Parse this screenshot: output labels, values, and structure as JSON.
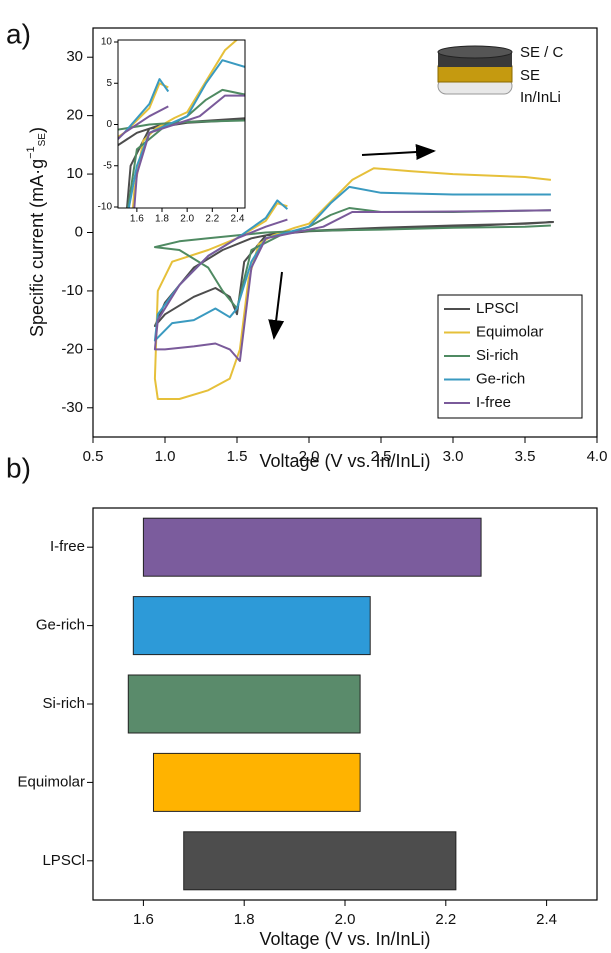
{
  "chart_data": [
    {
      "type": "line",
      "panel_label": "a)",
      "x_label": "Voltage (V vs. In/InLi)",
      "y_label": [
        "Specific current (mA·g",
        "−1",
        "SE",
        ")"
      ],
      "annotations": [
        "SE / C",
        "SE",
        "In/InLi"
      ],
      "xlim": [
        0.5,
        4.0
      ],
      "ylim": [
        -35,
        35
      ],
      "xticks": [
        0.5,
        {
          "value": 1,
          "label": "1.0"
        },
        1.5,
        {
          "value": 2,
          "label": "2.0"
        },
        2.5,
        {
          "value": 3,
          "label": "3.0"
        },
        3.5,
        {
          "value": 4,
          "label": "4.0"
        }
      ],
      "yticks": [
        -30,
        -20,
        -10,
        0,
        10,
        20,
        30
      ],
      "legend": "lower right",
      "series": [
        {
          "name": "LPSCl",
          "color": "#4d4d4d",
          "x": [
            3.7,
            3.0,
            2.5,
            2.0,
            1.7,
            1.55,
            1.5,
            1.45,
            1.35,
            1.2,
            1.0,
            0.93,
            1.0,
            1.2,
            1.4,
            1.6,
            1.8,
            2.0,
            2.5,
            3.0,
            3.5,
            3.7
          ],
          "values": [
            1.8,
            1.0,
            0.6,
            0.2,
            -0.5,
            -5,
            -14,
            -11,
            -9.5,
            -11,
            -14,
            -16,
            -12,
            -6,
            -3,
            -1,
            0,
            0.3,
            0.8,
            1.2,
            1.5,
            1.8
          ]
        },
        {
          "name": "Equimolar",
          "color": "#e6c03a",
          "x": [
            3.68,
            3.5,
            3.0,
            2.7,
            2.45,
            2.3,
            2.1,
            2.0,
            1.9,
            1.75,
            1.65,
            1.58,
            1.52,
            1.45,
            1.3,
            1.1,
            0.95,
            0.93,
            0.95,
            1.05,
            1.3,
            1.5,
            1.7,
            1.78,
            1.85
          ],
          "values": [
            9,
            9.5,
            10,
            10.5,
            11,
            9,
            4,
            1.5,
            0.8,
            -0.5,
            -2,
            -8,
            -20,
            -25,
            -27,
            -28.5,
            -28.5,
            -25,
            -10,
            -5,
            -3,
            -1,
            2,
            5,
            4.5
          ]
        },
        {
          "name": "Si-rich",
          "color": "#4f8a62",
          "x": [
            3.68,
            3.0,
            2.5,
            2.28,
            2.15,
            2.0,
            1.8,
            1.6,
            1.5,
            1.4,
            1.3,
            1.1,
            0.93,
            1.1,
            1.3,
            1.5,
            1.7,
            2.0,
            2.5,
            3.0,
            3.5,
            3.68
          ],
          "values": [
            3.8,
            3.5,
            3.5,
            4.2,
            3,
            1,
            -0.5,
            -3,
            -13,
            -10,
            -6,
            -3,
            -2.5,
            -1.5,
            -1,
            -0.5,
            0,
            0.3,
            0.5,
            0.8,
            1,
            1.2
          ]
        },
        {
          "name": "Ge-rich",
          "color": "#3a9ac0",
          "x": [
            3.68,
            3.0,
            2.5,
            2.28,
            2.15,
            2.0,
            1.85,
            1.7,
            1.6,
            1.5,
            1.45,
            1.35,
            1.2,
            1.05,
            0.93,
            0.95,
            1.1,
            1.3,
            1.5,
            1.7,
            1.78,
            1.85
          ],
          "values": [
            6.5,
            6.5,
            6.8,
            7.8,
            5,
            1,
            0,
            -1,
            -5,
            -13,
            -14.5,
            -13,
            -15,
            -15.5,
            -18.5,
            -14,
            -9,
            -4,
            -1,
            2.5,
            5.5,
            4
          ]
        },
        {
          "name": "I-free",
          "color": "#7a5a9a",
          "x": [
            3.68,
            3.0,
            2.5,
            2.3,
            2.1,
            1.9,
            1.7,
            1.6,
            1.52,
            1.45,
            1.35,
            1.2,
            1.0,
            0.93,
            0.95,
            1.1,
            1.3,
            1.5,
            1.7,
            1.85
          ],
          "values": [
            3.8,
            3.6,
            3.5,
            3.5,
            1,
            0,
            -1,
            -6,
            -22,
            -20,
            -19,
            -19.5,
            -20,
            -20,
            -15,
            -9,
            -4,
            -1,
            1,
            2.2
          ]
        }
      ],
      "inset": {
        "xlim": [
          1.45,
          2.46
        ],
        "ylim": [
          -10,
          10
        ],
        "xticks": [
          1.6,
          1.8,
          {
            "value": 2,
            "label": "2.0"
          },
          2.2,
          2.4
        ],
        "yticks": [
          -10,
          -5,
          0,
          5,
          10
        ]
      }
    },
    {
      "type": "floating-bar",
      "panel_label": "b)",
      "x_label": "Voltage (V vs. In/InLi)",
      "categories": [
        "LPSCl",
        "Equimolar",
        "Si-rich",
        "Ge-rich",
        "I-free"
      ],
      "starts": [
        1.68,
        1.62,
        1.57,
        1.58,
        1.6
      ],
      "ends": [
        2.22,
        2.03,
        2.03,
        2.05,
        2.27
      ],
      "colors": [
        "#4d4d4d",
        "#ffb300",
        "#5a8b6b",
        "#2d9ad8",
        "#7b5c9d"
      ],
      "xlim": [
        1.5,
        2.5
      ],
      "xticks": [
        1.6,
        1.8,
        {
          "value": 2,
          "label": "2.0"
        },
        2.2,
        2.4
      ]
    }
  ]
}
